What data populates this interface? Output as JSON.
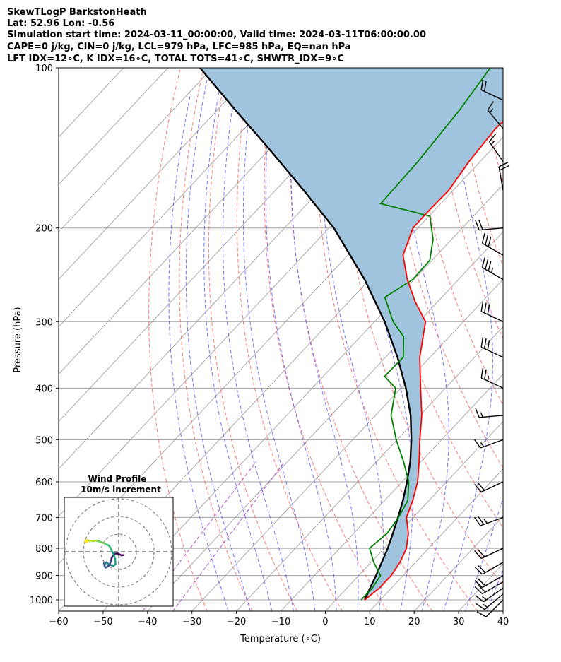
{
  "header": {
    "line1": "SkewTLogP BarkstonHeath",
    "line2": "Lat: 52.96   Lon: -0.56",
    "line3": "Simulation start time: 2024-03-11_00:00:00, Valid time: 2024-03-11T06:00:00.00",
    "line4": "CAPE=0 j/kg, CIN=0 j/kg, LCL=979 hPa, LFC=985 hPa, EQ=nan hPa",
    "line5": "LFT IDX=12∘C, K IDX=16∘C, TOTAL TOTS=41∘C, SHWTR_IDX=9∘C"
  },
  "colors": {
    "temperature": "#ff0000",
    "dewpoint": "#008000",
    "parcel": "#000000",
    "cape_fill": "#a0c4dd",
    "dry_adiabat": "#ff6060",
    "moist_adiabat": "#5a5aff",
    "mixing_ratio": "#a040c0",
    "isotherm": "#a0a0a0",
    "barb": "#000000"
  },
  "chart_data": {
    "type": "skewt",
    "xlabel": "Temperature (∘C)",
    "ylabel": "Pressure (hPa)",
    "xlim": [
      -60,
      40
    ],
    "ylim": [
      1050,
      100
    ],
    "x_ticks": [
      "−60",
      "−50",
      "−40",
      "−30",
      "−20",
      "−10",
      "0",
      "10",
      "20",
      "30",
      "40"
    ],
    "y_ticks": [
      "1000",
      "900",
      "800",
      "700",
      "600",
      "500",
      "400",
      "300",
      "200",
      "100"
    ],
    "series": [
      {
        "key": "temperature",
        "points": [
          [
            6.5,
            1000
          ],
          [
            7.3,
            950
          ],
          [
            7.3,
            900
          ],
          [
            6.5,
            850
          ],
          [
            5.0,
            800
          ],
          [
            2.3,
            750
          ],
          [
            -1.5,
            700
          ],
          [
            -3.7,
            650
          ],
          [
            -6.5,
            600
          ],
          [
            -10.4,
            550
          ],
          [
            -14.9,
            500
          ],
          [
            -19.6,
            450
          ],
          [
            -25.6,
            400
          ],
          [
            -32.3,
            350
          ],
          [
            -38.5,
            300
          ],
          [
            -45.1,
            275
          ],
          [
            -51.5,
            250
          ],
          [
            -57.6,
            225
          ],
          [
            -61.1,
            200
          ],
          [
            -61.2,
            185
          ],
          [
            -61.0,
            170
          ],
          [
            -62.5,
            150
          ],
          [
            -63.5,
            130
          ],
          [
            -62.5,
            110
          ],
          [
            -61.5,
            100
          ]
        ]
      },
      {
        "key": "dewpoint",
        "points": [
          [
            5.7,
            1000
          ],
          [
            5.7,
            950
          ],
          [
            4.9,
            900
          ],
          [
            0.6,
            850
          ],
          [
            -3.3,
            800
          ],
          [
            -2.5,
            750
          ],
          [
            -3.3,
            700
          ],
          [
            -4.8,
            650
          ],
          [
            -8.5,
            600
          ],
          [
            -13.9,
            550
          ],
          [
            -20.2,
            500
          ],
          [
            -26.5,
            450
          ],
          [
            -31.2,
            400
          ],
          [
            -36.2,
            380
          ],
          [
            -36.0,
            350
          ],
          [
            -40.3,
            320
          ],
          [
            -45.8,
            300
          ],
          [
            -52.8,
            270
          ],
          [
            -50.3,
            250
          ],
          [
            -50.5,
            230
          ],
          [
            -54.2,
            210
          ],
          [
            -59.8,
            190
          ],
          [
            -73.5,
            180
          ],
          [
            -74.0,
            150
          ],
          [
            -75.5,
            120
          ],
          [
            -77.5,
            100
          ]
        ]
      },
      {
        "key": "parcel",
        "points": [
          [
            6.5,
            1000
          ],
          [
            5.2,
            950
          ],
          [
            3.9,
            900
          ],
          [
            2.4,
            850
          ],
          [
            0.8,
            800
          ],
          [
            -1.2,
            750
          ],
          [
            -3.4,
            700
          ],
          [
            -5.9,
            650
          ],
          [
            -8.9,
            600
          ],
          [
            -12.4,
            550
          ],
          [
            -16.8,
            500
          ],
          [
            -22.1,
            450
          ],
          [
            -28.9,
            400
          ],
          [
            -37.3,
            350
          ],
          [
            -47.7,
            300
          ],
          [
            -61.1,
            250
          ],
          [
            -78.9,
            200
          ],
          [
            -93.6,
            170
          ],
          [
            -111.5,
            140
          ],
          [
            -126.0,
            120
          ],
          [
            -142.8,
            100
          ]
        ]
      }
    ],
    "wind_barbs": [
      {
        "p": 1000,
        "dir": 225,
        "kt": 12
      },
      {
        "p": 975,
        "dir": 230,
        "kt": 16
      },
      {
        "p": 950,
        "dir": 235,
        "kt": 18
      },
      {
        "p": 925,
        "dir": 240,
        "kt": 20
      },
      {
        "p": 900,
        "dir": 240,
        "kt": 22
      },
      {
        "p": 850,
        "dir": 240,
        "kt": 24
      },
      {
        "p": 800,
        "dir": 245,
        "kt": 24
      },
      {
        "p": 700,
        "dir": 250,
        "kt": 25
      },
      {
        "p": 600,
        "dir": 245,
        "kt": 20
      },
      {
        "p": 500,
        "dir": 250,
        "kt": 15
      },
      {
        "p": 450,
        "dir": 265,
        "kt": 15
      },
      {
        "p": 400,
        "dir": 295,
        "kt": 25
      },
      {
        "p": 350,
        "dir": 295,
        "kt": 30
      },
      {
        "p": 300,
        "dir": 295,
        "kt": 30
      },
      {
        "p": 250,
        "dir": 300,
        "kt": 35
      },
      {
        "p": 225,
        "dir": 300,
        "kt": 30
      },
      {
        "p": 200,
        "dir": 265,
        "kt": 20
      },
      {
        "p": 170,
        "dir": 350,
        "kt": 20
      },
      {
        "p": 150,
        "dir": 325,
        "kt": 15
      },
      {
        "p": 130,
        "dir": 320,
        "kt": 15
      },
      {
        "p": 115,
        "dir": 295,
        "kt": 20
      }
    ],
    "hodograph": {
      "title": "Wind Profile",
      "subtitle": "10m/s increment",
      "rings_ms": [
        10,
        20,
        30
      ],
      "points": [
        [
          2.8,
          -1.9
        ],
        [
          1.5,
          -2.0
        ],
        [
          0.5,
          -1.5
        ],
        [
          -0.5,
          -1.0
        ],
        [
          -2.0,
          -1.0
        ],
        [
          -3.0,
          -2.0
        ],
        [
          -4.0,
          -3.5
        ],
        [
          -4.5,
          -5.5
        ],
        [
          -5.2,
          -7.5
        ],
        [
          -6.5,
          -8.5
        ],
        [
          -7.5,
          -9.0
        ],
        [
          -8.0,
          -8.0
        ],
        [
          -8.3,
          -6.5
        ],
        [
          -7.0,
          -6.0
        ],
        [
          -5.5,
          -7.0
        ],
        [
          -4.5,
          -7.5
        ],
        [
          -3.0,
          -8.0
        ],
        [
          -1.8,
          -7.0
        ],
        [
          -2.0,
          -4.0
        ],
        [
          -3.0,
          -1.0
        ],
        [
          -4.0,
          0.5
        ],
        [
          -4.5,
          2.0
        ],
        [
          -5.5,
          3.5
        ],
        [
          -7.5,
          4.5
        ],
        [
          -10.0,
          5.5
        ],
        [
          -11.5,
          6.0
        ],
        [
          -12.8,
          6.3
        ],
        [
          -14.3,
          6.0
        ],
        [
          -16.0,
          6.2
        ],
        [
          -18.2,
          6.5
        ],
        [
          -19.0,
          6.2
        ],
        [
          -18.5,
          5.5
        ],
        [
          -17.5,
          5.8
        ]
      ]
    }
  }
}
